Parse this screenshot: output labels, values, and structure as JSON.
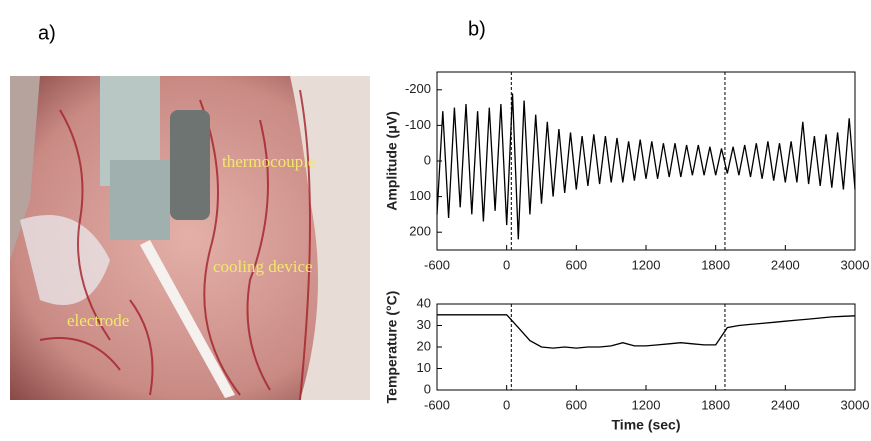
{
  "panels": {
    "a": "a)",
    "b": "b)"
  },
  "photo": {
    "labels": [
      "thermocouple",
      "cooling device",
      "electrode"
    ]
  },
  "chart_data": [
    {
      "type": "line",
      "ylabel": "Amplitude (μV)",
      "color": "#000000",
      "x": [
        -600,
        -550,
        -500,
        -450,
        -400,
        -350,
        -300,
        -250,
        -200,
        -150,
        -100,
        -50,
        0,
        50,
        100,
        150,
        200,
        250,
        300,
        350,
        400,
        450,
        500,
        550,
        600,
        650,
        700,
        750,
        800,
        850,
        900,
        950,
        1000,
        1050,
        1100,
        1150,
        1200,
        1250,
        1300,
        1350,
        1400,
        1450,
        1500,
        1550,
        1600,
        1650,
        1700,
        1750,
        1800,
        1850,
        1900,
        1950,
        2000,
        2050,
        2100,
        2150,
        2200,
        2250,
        2300,
        2350,
        2400,
        2450,
        2500,
        2550,
        2600,
        2650,
        2700,
        2750,
        2800,
        2850,
        2900,
        2950,
        3000
      ],
      "values": [
        150,
        -140,
        160,
        -150,
        130,
        -160,
        150,
        -140,
        170,
        -150,
        140,
        -160,
        180,
        -190,
        220,
        -170,
        150,
        -130,
        120,
        -110,
        100,
        -90,
        90,
        -80,
        80,
        -70,
        70,
        -75,
        65,
        -70,
        60,
        -65,
        60,
        -55,
        55,
        -60,
        50,
        -55,
        50,
        -50,
        45,
        -50,
        45,
        -45,
        40,
        -45,
        40,
        -40,
        40,
        -35,
        35,
        -40,
        40,
        -45,
        45,
        -50,
        50,
        -55,
        55,
        -50,
        60,
        -55,
        60,
        -110,
        65,
        -70,
        70,
        -75,
        75,
        -80,
        80,
        -120,
        80
      ],
      "xlim": [
        -600,
        3000
      ],
      "ylim": [
        250,
        -250
      ],
      "xticks": [
        -600,
        0,
        600,
        1200,
        1800,
        2400,
        3000
      ],
      "yticks": [
        -200,
        -100,
        0,
        100,
        200
      ],
      "vlines": [
        40,
        1880
      ]
    },
    {
      "type": "line",
      "ylabel": "Temperature (°C)",
      "xlabel": "Time (sec)",
      "color": "#000000",
      "x": [
        -600,
        -500,
        -400,
        -300,
        -200,
        -100,
        0,
        100,
        200,
        300,
        400,
        500,
        600,
        700,
        800,
        900,
        1000,
        1100,
        1200,
        1300,
        1400,
        1500,
        1600,
        1700,
        1800,
        1900,
        2000,
        2100,
        2200,
        2300,
        2400,
        2500,
        2600,
        2700,
        2800,
        2900,
        3000
      ],
      "values": [
        35,
        35,
        35,
        35,
        35,
        35,
        35,
        29,
        23,
        20,
        19.5,
        20,
        19.5,
        20,
        20,
        20.5,
        22,
        20.5,
        20.5,
        21,
        21.5,
        22,
        21.5,
        21,
        21,
        29,
        30,
        30.5,
        31,
        31.5,
        32,
        32.5,
        33,
        33.5,
        34,
        34.3,
        34.5
      ],
      "xlim": [
        -600,
        3000
      ],
      "ylim": [
        0,
        40
      ],
      "xticks": [
        -600,
        0,
        600,
        1200,
        1800,
        2400,
        3000
      ],
      "yticks": [
        0,
        10,
        20,
        30,
        40
      ],
      "vlines": [
        40,
        1880
      ]
    }
  ]
}
